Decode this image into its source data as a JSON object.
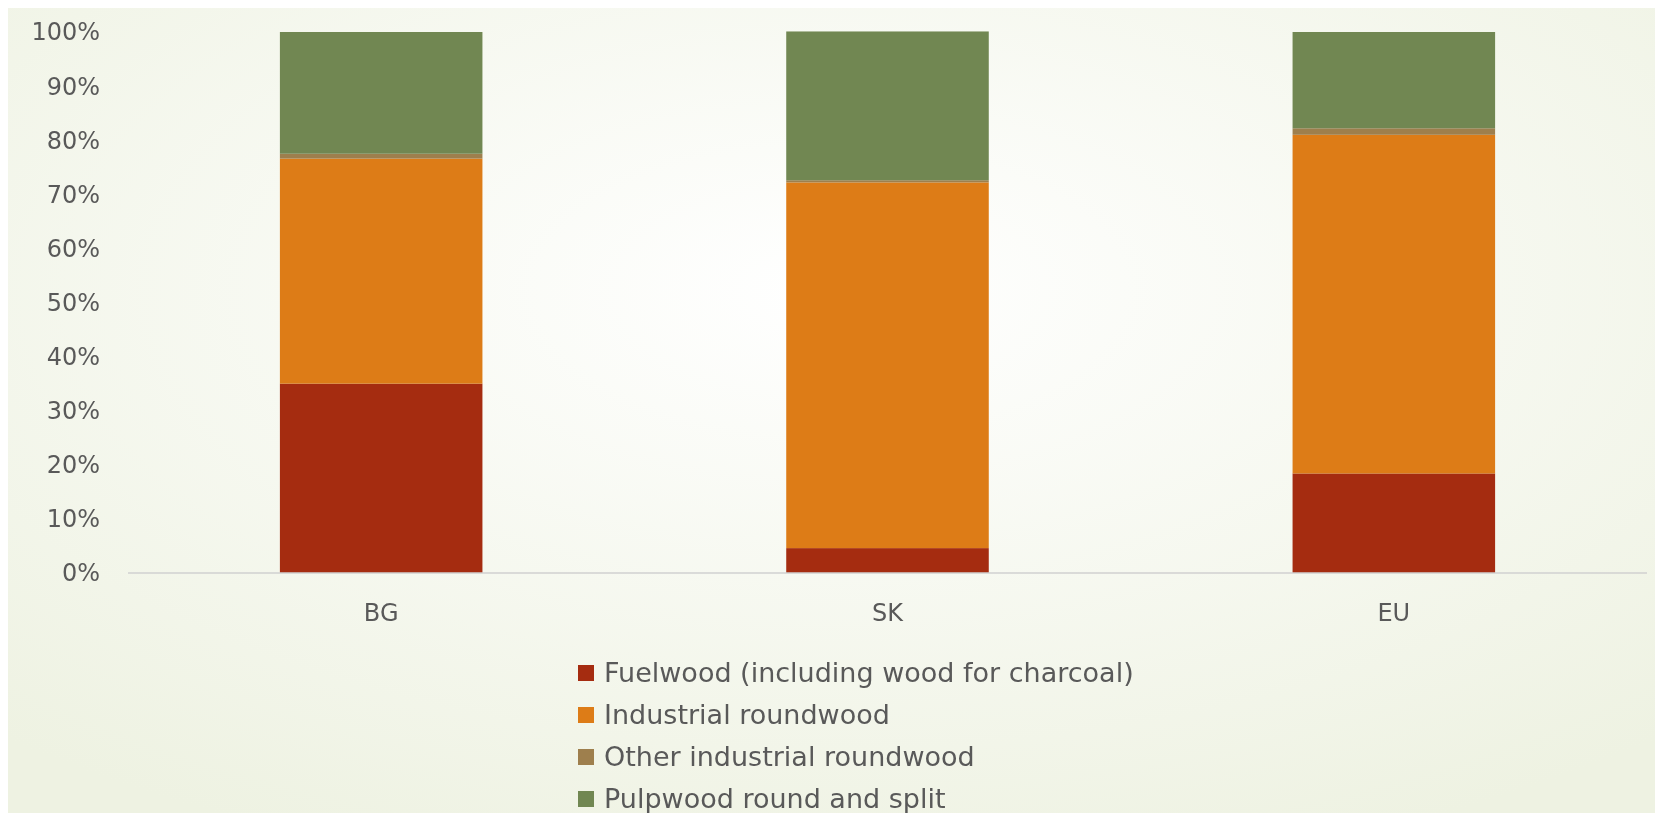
{
  "chart_data": {
    "type": "bar",
    "stacked": true,
    "categories": [
      "BG",
      "SK",
      "EU"
    ],
    "series": [
      {
        "name": "Fuelwood (including wood for charcoal)",
        "color": "#a52c10",
        "values": [
          35.0,
          4.6,
          18.4
        ]
      },
      {
        "name": "Industrial roundwood",
        "color": "#dd7c17",
        "values": [
          41.6,
          67.6,
          62.6
        ]
      },
      {
        "name": "Other industrial roundwood",
        "color": "#9e7f4d",
        "values": [
          0.9,
          0.4,
          1.2
        ]
      },
      {
        "name": "Pulpwood round and split",
        "color": "#718752",
        "values": [
          22.5,
          27.5,
          17.8
        ]
      }
    ],
    "ylim": [
      0,
      100
    ],
    "yticks": [
      {
        "value": 0,
        "label": "0%"
      },
      {
        "value": 10,
        "label": "10%"
      },
      {
        "value": 20,
        "label": "20%"
      },
      {
        "value": 30,
        "label": "30%"
      },
      {
        "value": 40,
        "label": "40%"
      },
      {
        "value": 50,
        "label": "50%"
      },
      {
        "value": 60,
        "label": "60%"
      },
      {
        "value": 70,
        "label": "70%"
      },
      {
        "value": 80,
        "label": "80%"
      },
      {
        "value": 90,
        "label": "90%"
      },
      {
        "value": 100,
        "label": "100%"
      }
    ],
    "grid": false,
    "legend": "bottom"
  }
}
